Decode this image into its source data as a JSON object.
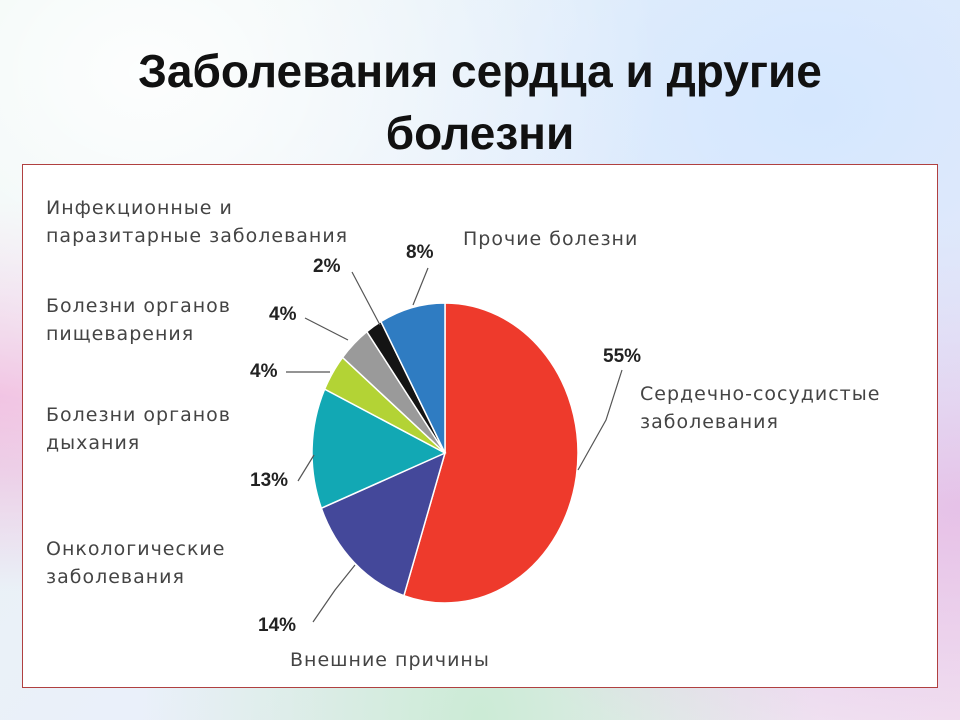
{
  "slide": {
    "title_line1": "Заболевания сердца и другие",
    "title_line2": "болезни"
  },
  "chart_data": {
    "type": "pie",
    "unit": "%",
    "slices": [
      {
        "label_lines": [
          "Сердечно-сосудистые",
          "заболевания"
        ],
        "value": 55,
        "value_label": "55%",
        "color": "#ee3a2c"
      },
      {
        "label_lines": [
          "Внешние причины"
        ],
        "value": 14,
        "value_label": "14%",
        "color": "#44489a"
      },
      {
        "label_lines": [
          "Онкологические",
          "заболевания"
        ],
        "value": 13,
        "value_label": "13%",
        "color": "#12a8b4"
      },
      {
        "label_lines": [
          "Болезни органов",
          "дыхания"
        ],
        "value": 4,
        "value_label": "4%",
        "color": "#b3d335"
      },
      {
        "label_lines": [
          "Болезни органов",
          "пищеварения"
        ],
        "value": 4,
        "value_label": "4%",
        "color": "#9a9a9a"
      },
      {
        "label_lines": [
          "Инфекционные и",
          "паразитарные заболевания"
        ],
        "value": 2,
        "value_label": "2%",
        "color": "#141414"
      },
      {
        "label_lines": [
          "Прочие болезни"
        ],
        "value": 8,
        "value_label": "8%",
        "color": "#2f7cc2"
      }
    ]
  }
}
